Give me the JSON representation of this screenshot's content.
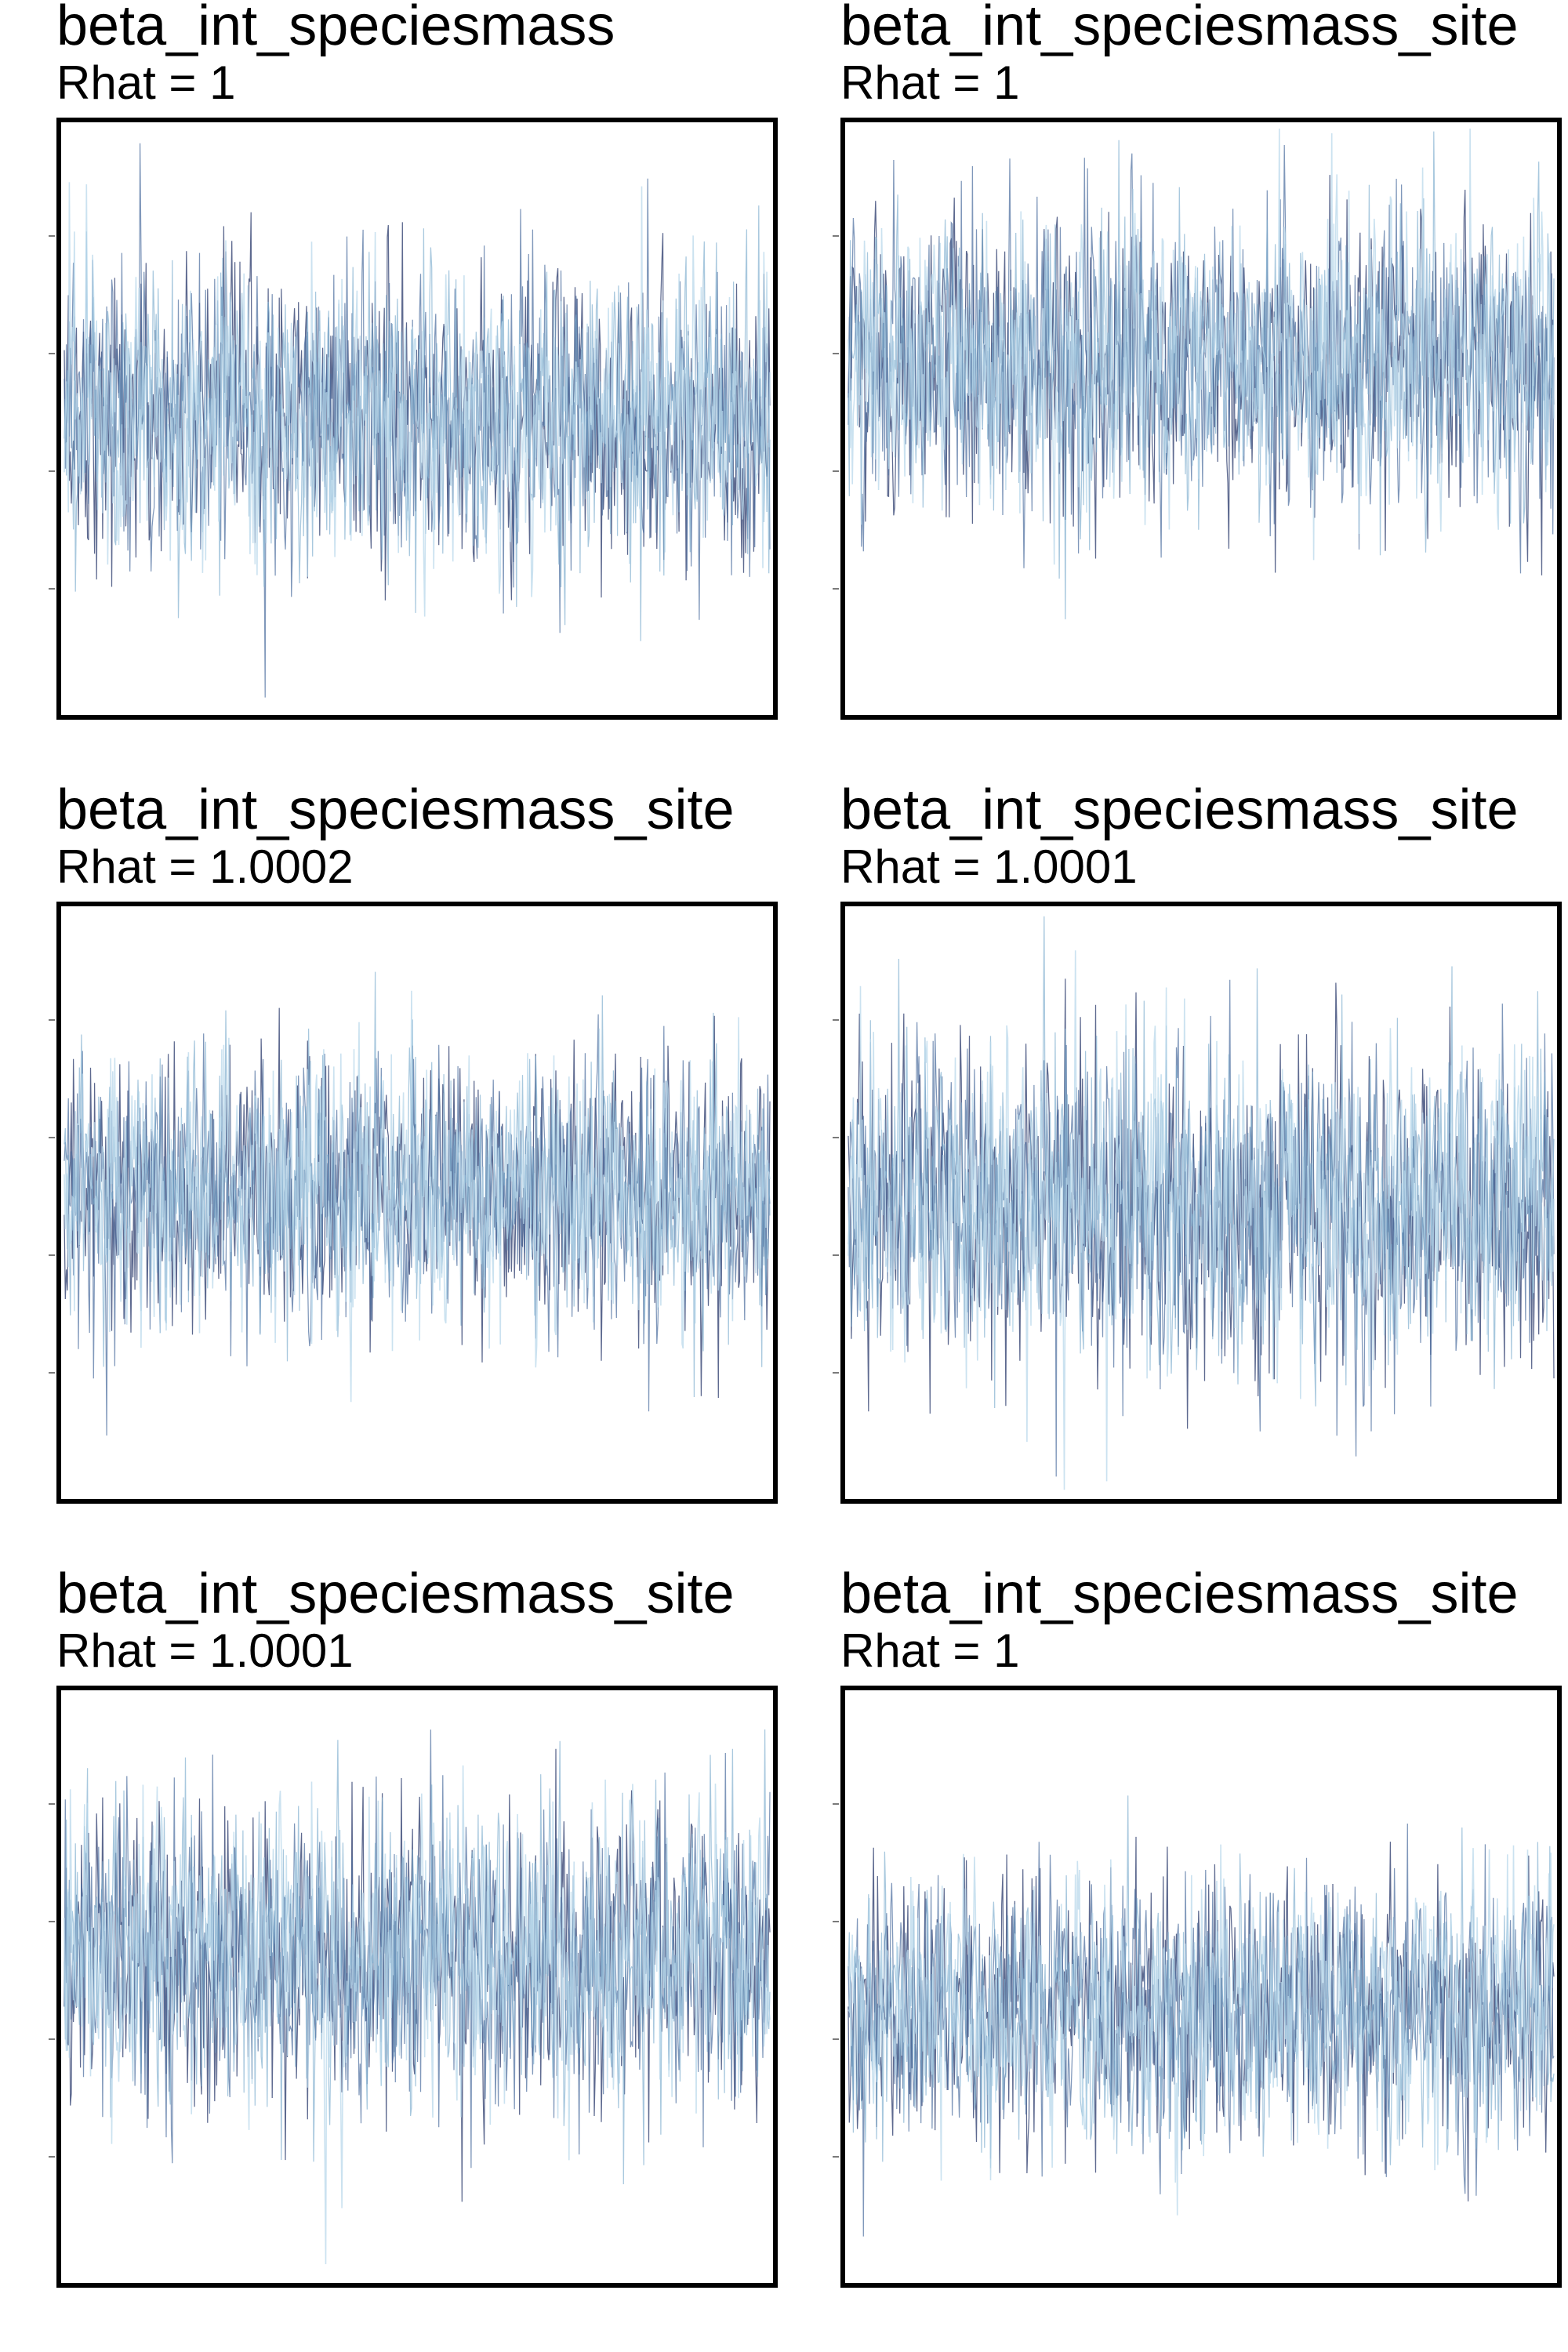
{
  "chart_data": [
    {
      "type": "line",
      "title": "beta_int_speciesmass",
      "subtitle": "Rhat = 1",
      "series_count": 4,
      "iterations": 700,
      "center": 0.0,
      "spread": 1.0,
      "ylim": [
        -3.6,
        3.6
      ],
      "xlabel": "",
      "ylabel": "",
      "grid": false
    },
    {
      "type": "line",
      "title": "beta_int_speciesmass_site",
      "subtitle": "Rhat = 1",
      "series_count": 4,
      "iterations": 700,
      "center": 0.7,
      "spread": 1.0,
      "ylim": [
        -3.6,
        3.6
      ],
      "xlabel": "",
      "ylabel": "",
      "grid": false
    },
    {
      "type": "line",
      "title": "beta_int_speciesmass_site",
      "subtitle": "Rhat = 1.0002",
      "series_count": 4,
      "iterations": 700,
      "center": 0.1,
      "spread": 0.9,
      "ylim": [
        -3.6,
        3.6
      ],
      "xlabel": "",
      "ylabel": "",
      "grid": false
    },
    {
      "type": "line",
      "title": "beta_int_speciesmass_site",
      "subtitle": "Rhat = 1.0001",
      "series_count": 4,
      "iterations": 700,
      "center": 0.0,
      "spread": 1.1,
      "ylim": [
        -3.6,
        3.6
      ],
      "xlabel": "",
      "ylabel": "",
      "grid": false
    },
    {
      "type": "line",
      "title": "beta_int_speciesmass_site",
      "subtitle": "Rhat = 1.0001",
      "series_count": 4,
      "iterations": 700,
      "center": 0.4,
      "spread": 1.0,
      "ylim": [
        -3.6,
        3.6
      ],
      "xlabel": "",
      "ylabel": "",
      "grid": false
    },
    {
      "type": "line",
      "title": "beta_int_speciesmass_site",
      "subtitle": "Rhat = 1",
      "series_count": 4,
      "iterations": 700,
      "center": -0.3,
      "spread": 0.9,
      "ylim": [
        -3.6,
        3.6
      ],
      "xlabel": "",
      "ylabel": "",
      "grid": false
    }
  ],
  "colors": {
    "chain_1": "#2f3f6f",
    "chain_2": "#4d6f9f",
    "chain_3": "#7faecf",
    "chain_4": "#b7d7ea",
    "axis": "#000000",
    "background": "#ffffff"
  }
}
